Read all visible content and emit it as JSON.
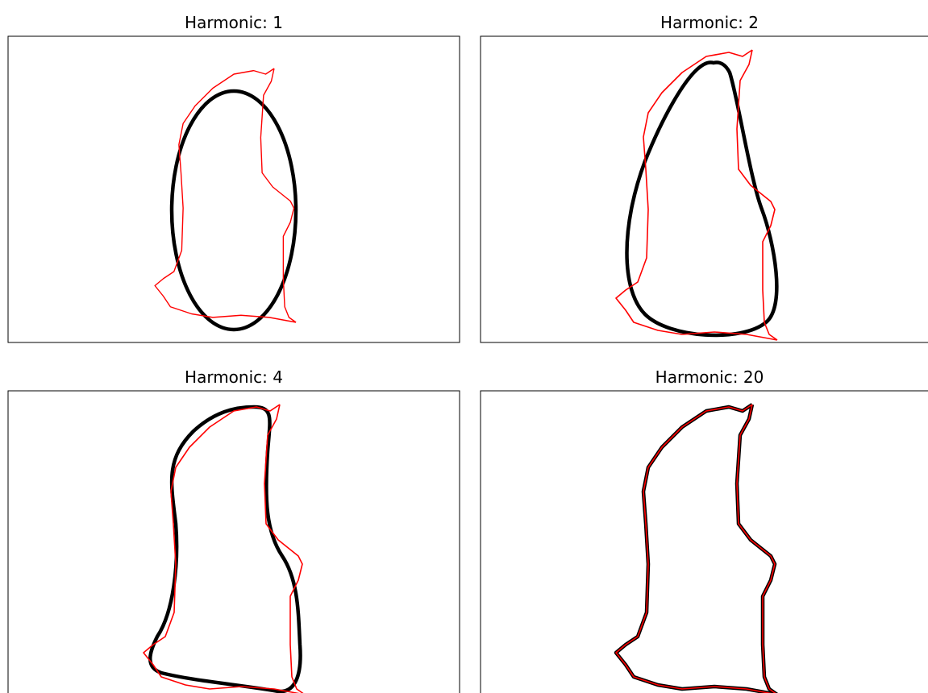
{
  "panels": [
    {
      "title": "Harmonic: 1"
    },
    {
      "title": "Harmonic: 2"
    },
    {
      "title": "Harmonic: 4"
    },
    {
      "title": "Harmonic: 20"
    }
  ]
}
